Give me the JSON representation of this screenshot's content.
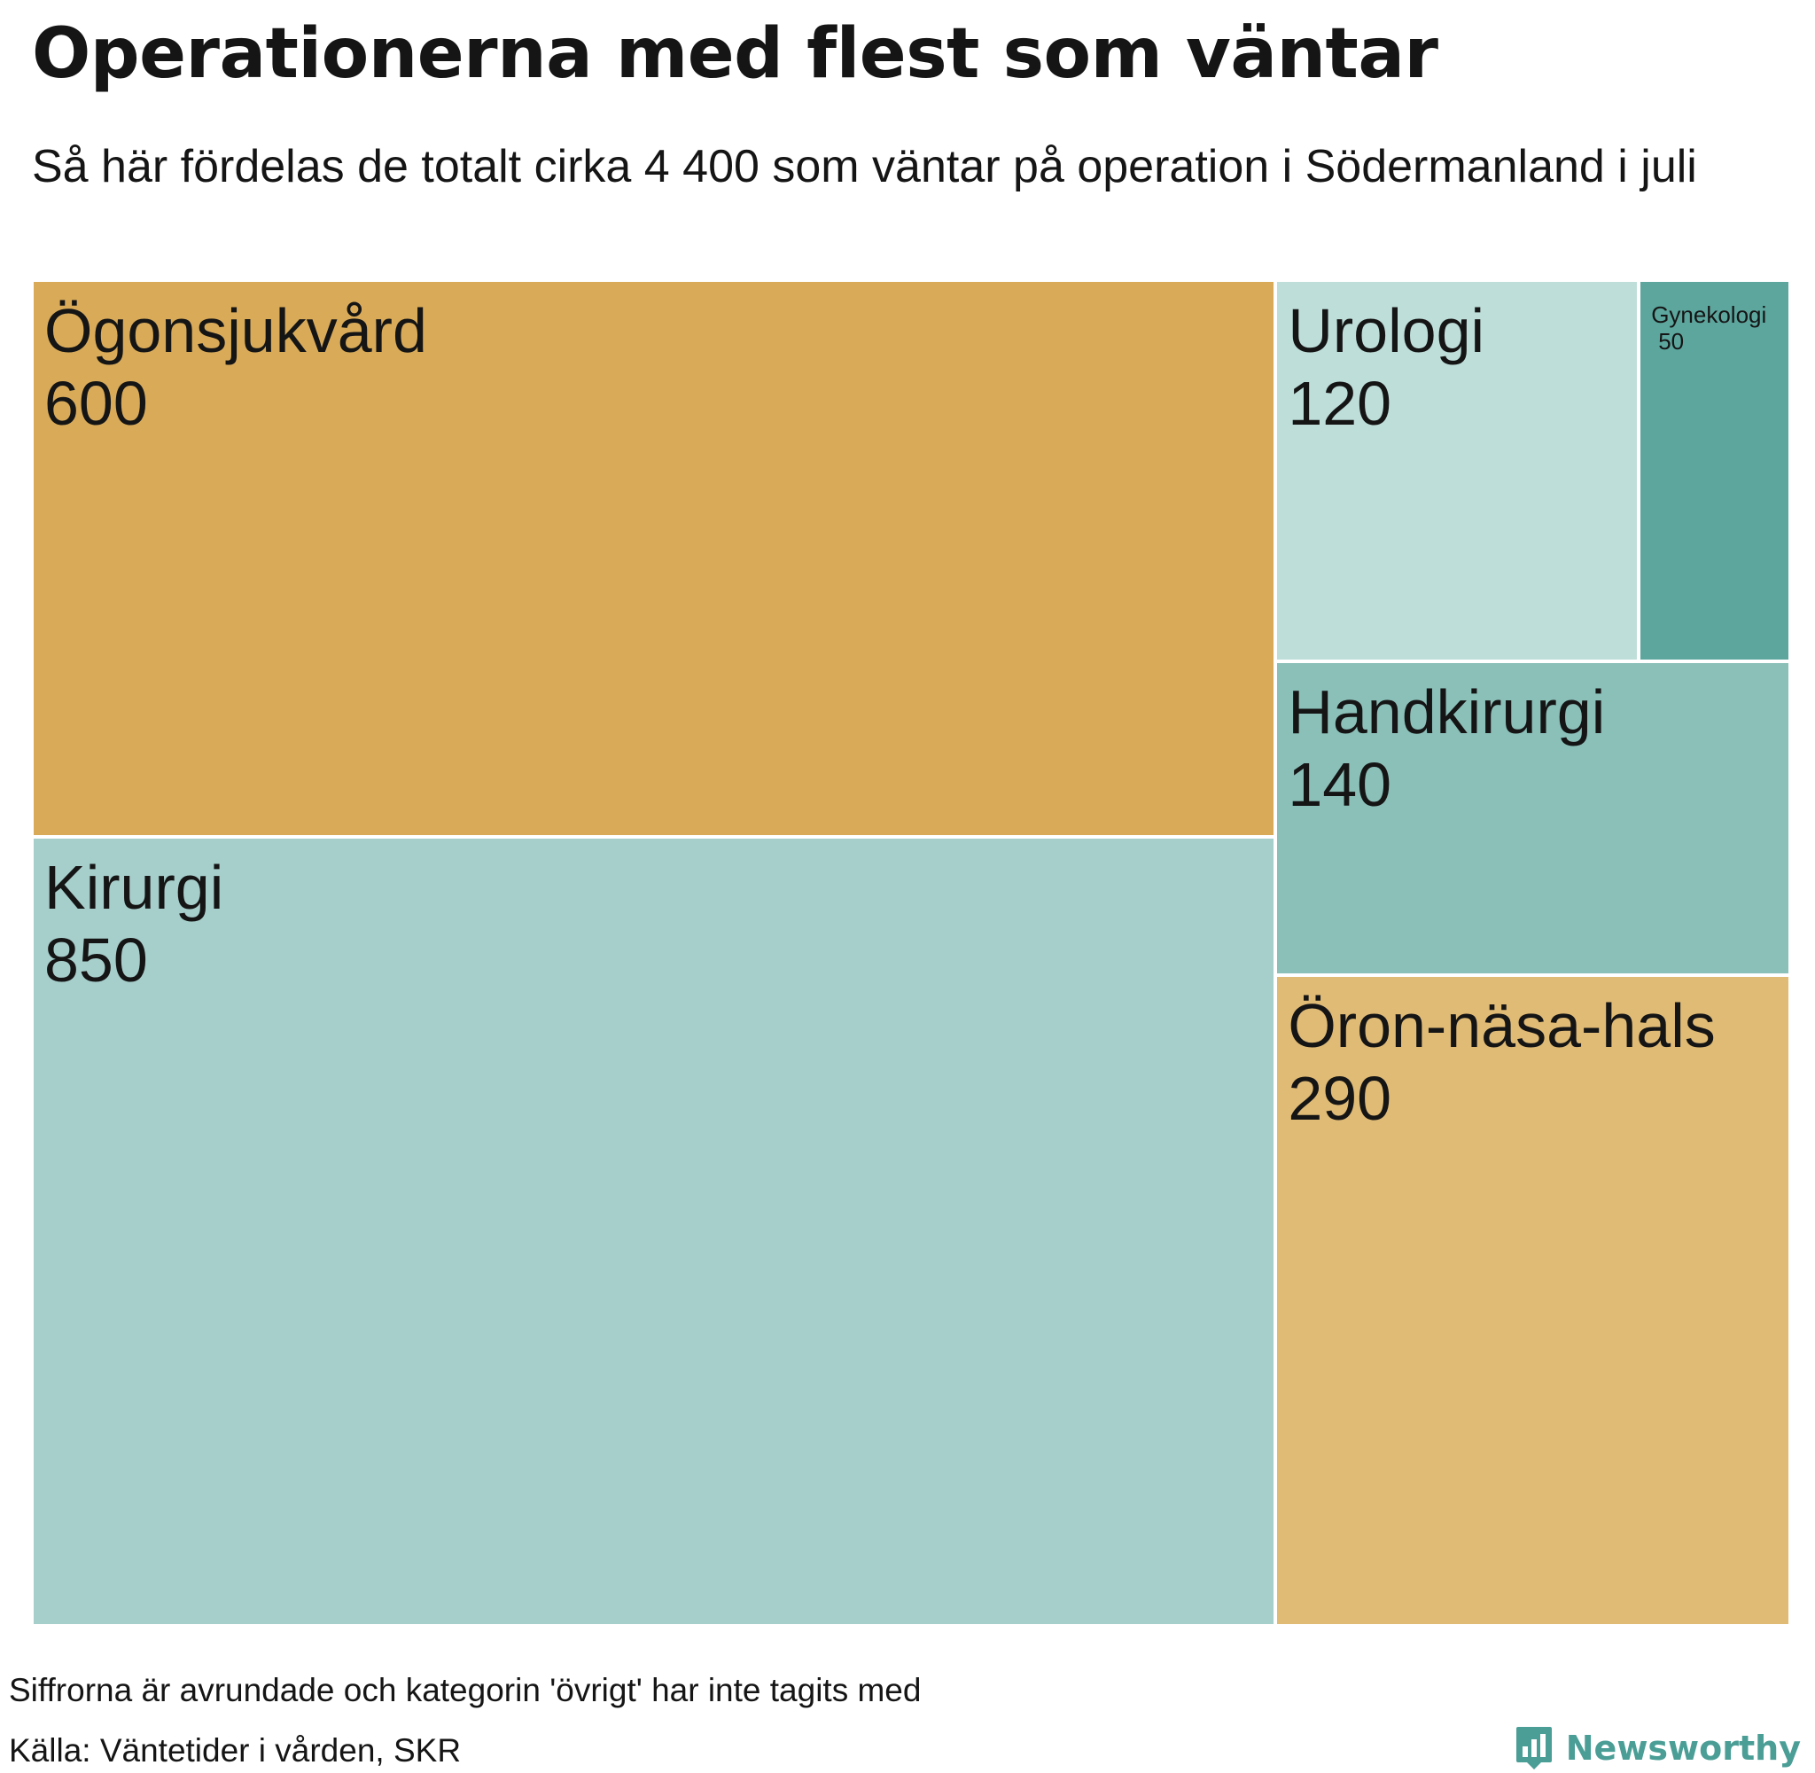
{
  "title": "Operationerna med flest som väntar",
  "subtitle": "Så här fördelas de totalt cirka 4 400 som väntar på operation i Södermanland i juli",
  "chart_data": {
    "type": "treemap",
    "title": "Operationerna med flest som väntar",
    "subtitle": "Så här fördelas de totalt cirka 4 400 som väntar på operation i Södermanland i juli",
    "items": [
      {
        "name": "Ögonsjukvård",
        "value": 600,
        "color": "#d9ab59"
      },
      {
        "name": "Kirurgi",
        "value": 850,
        "color": "#a6cecb"
      },
      {
        "name": "Urologi",
        "value": 120,
        "color": "#bedeD9"
      },
      {
        "name": "Gynekologi",
        "value": 50,
        "color": "#5ca69e"
      },
      {
        "name": "Handkirurgi",
        "value": 140,
        "color": "#8bc0b9"
      },
      {
        "name": "Öron-näsa-hals",
        "value": 290,
        "color": "#e0bb76"
      }
    ]
  },
  "footer": {
    "note": "Siffrorna är avrundade och kategorin 'övrigt' har inte tagits med",
    "source": "Källa: Väntetider i vården, SKR"
  },
  "brand": {
    "name": "Newsworthy",
    "icon": "newsworthy-logo-icon",
    "color": "#4a9e96"
  }
}
